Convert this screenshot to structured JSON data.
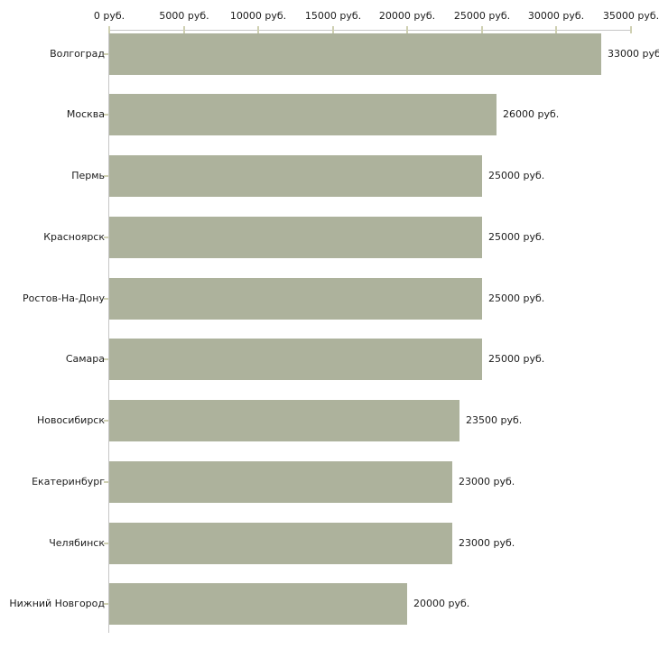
{
  "chart_data": {
    "type": "bar",
    "orientation": "horizontal",
    "title": "",
    "xlabel": "",
    "ylabel": "",
    "categories": [
      "Волгоград",
      "Москва",
      "Пермь",
      "Красноярск",
      "Ростов-На-Дону",
      "Самара",
      "Новосибирск",
      "Екатеринбург",
      "Челябинск",
      "Нижний Новгород"
    ],
    "values": [
      33000,
      26000,
      25000,
      25000,
      25000,
      25000,
      23500,
      23000,
      23000,
      20000
    ],
    "value_labels": [
      "33000 руб",
      "26000 руб.",
      "25000 руб.",
      "25000 руб.",
      "25000 руб.",
      "25000 руб.",
      "23500 руб.",
      "23000 руб.",
      "23000 руб.",
      "20000 руб."
    ],
    "x_tick_values": [
      0,
      5000,
      10000,
      15000,
      20000,
      25000,
      30000,
      35000
    ],
    "x_tick_labels": [
      "0 руб.",
      "5000 руб.",
      "10000 руб.",
      "15000 руб.",
      "20000 руб.",
      "25000 руб.",
      "30000 руб.",
      "35000 руб."
    ],
    "xlim": [
      0,
      35000
    ],
    "axis_position": "top",
    "grid": false,
    "legend": false,
    "colors": {
      "bar": "#adb29c",
      "axis_line": "#c6c6c6",
      "tick_mark": "#cfd0b2",
      "text": "#1c1c1c",
      "background": "#ffffff"
    }
  }
}
